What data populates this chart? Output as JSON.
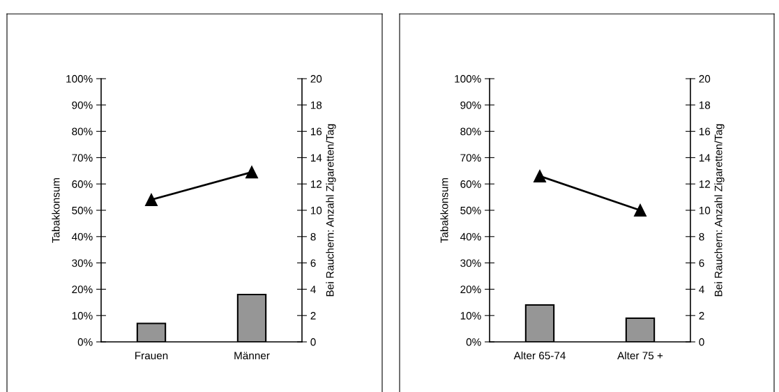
{
  "chart_data": [
    {
      "type": "bar",
      "ylabel": "Tabakkonsum",
      "y2label": "Bei Rauchern: Anzahl Zigaretten/Tag",
      "categories": [
        "Frauen",
        "Männer"
      ],
      "series": [
        {
          "color": "#969696",
          "values": [
            7,
            18
          ]
        },
        {
          "type": "line",
          "axis": "y2",
          "color": "#000000",
          "marker": "triangle",
          "line_style": "solid",
          "values": [
            10.8,
            12.9
          ]
        }
      ],
      "ylim": [
        0,
        100
      ],
      "yticks": [
        {
          "value": 0,
          "label": "0%"
        },
        {
          "value": 10,
          "label": "10%"
        },
        {
          "value": 20,
          "label": "20%"
        },
        {
          "value": 30,
          "label": "30%"
        },
        {
          "value": 40,
          "label": "40%"
        },
        {
          "value": 50,
          "label": "50%"
        },
        {
          "value": 60,
          "label": "60%"
        },
        {
          "value": 70,
          "label": "70%"
        },
        {
          "value": 80,
          "label": "80%"
        },
        {
          "value": 90,
          "label": "90%"
        },
        {
          "value": 100,
          "label": "100%"
        }
      ],
      "y2lim": [
        0,
        20
      ],
      "y2ticks": [
        0,
        2,
        4,
        6,
        8,
        10,
        12,
        14,
        16,
        18,
        20
      ],
      "grid": false,
      "legend": false
    },
    {
      "type": "bar",
      "ylabel": "Tabakkonsum",
      "y2label": "Bei Rauchern: Anzahl Zigaretten/Tag",
      "categories": [
        "Alter 65-74",
        "Alter 75 +"
      ],
      "series": [
        {
          "color": "#969696",
          "values": [
            14,
            9
          ]
        },
        {
          "type": "line",
          "axis": "y2",
          "color": "#000000",
          "marker": "triangle",
          "line_style": "solid",
          "values": [
            12.6,
            10.0
          ]
        }
      ],
      "ylim": [
        0,
        100
      ],
      "yticks": [
        {
          "value": 0,
          "label": "0%"
        },
        {
          "value": 10,
          "label": "10%"
        },
        {
          "value": 20,
          "label": "20%"
        },
        {
          "value": 30,
          "label": "30%"
        },
        {
          "value": 40,
          "label": "40%"
        },
        {
          "value": 50,
          "label": "50%"
        },
        {
          "value": 60,
          "label": "60%"
        },
        {
          "value": 70,
          "label": "70%"
        },
        {
          "value": 80,
          "label": "80%"
        },
        {
          "value": 90,
          "label": "90%"
        },
        {
          "value": 100,
          "label": "100%"
        }
      ],
      "y2lim": [
        0,
        20
      ],
      "y2ticks": [
        0,
        2,
        4,
        6,
        8,
        10,
        12,
        14,
        16,
        18,
        20
      ],
      "grid": false,
      "legend": false
    }
  ]
}
